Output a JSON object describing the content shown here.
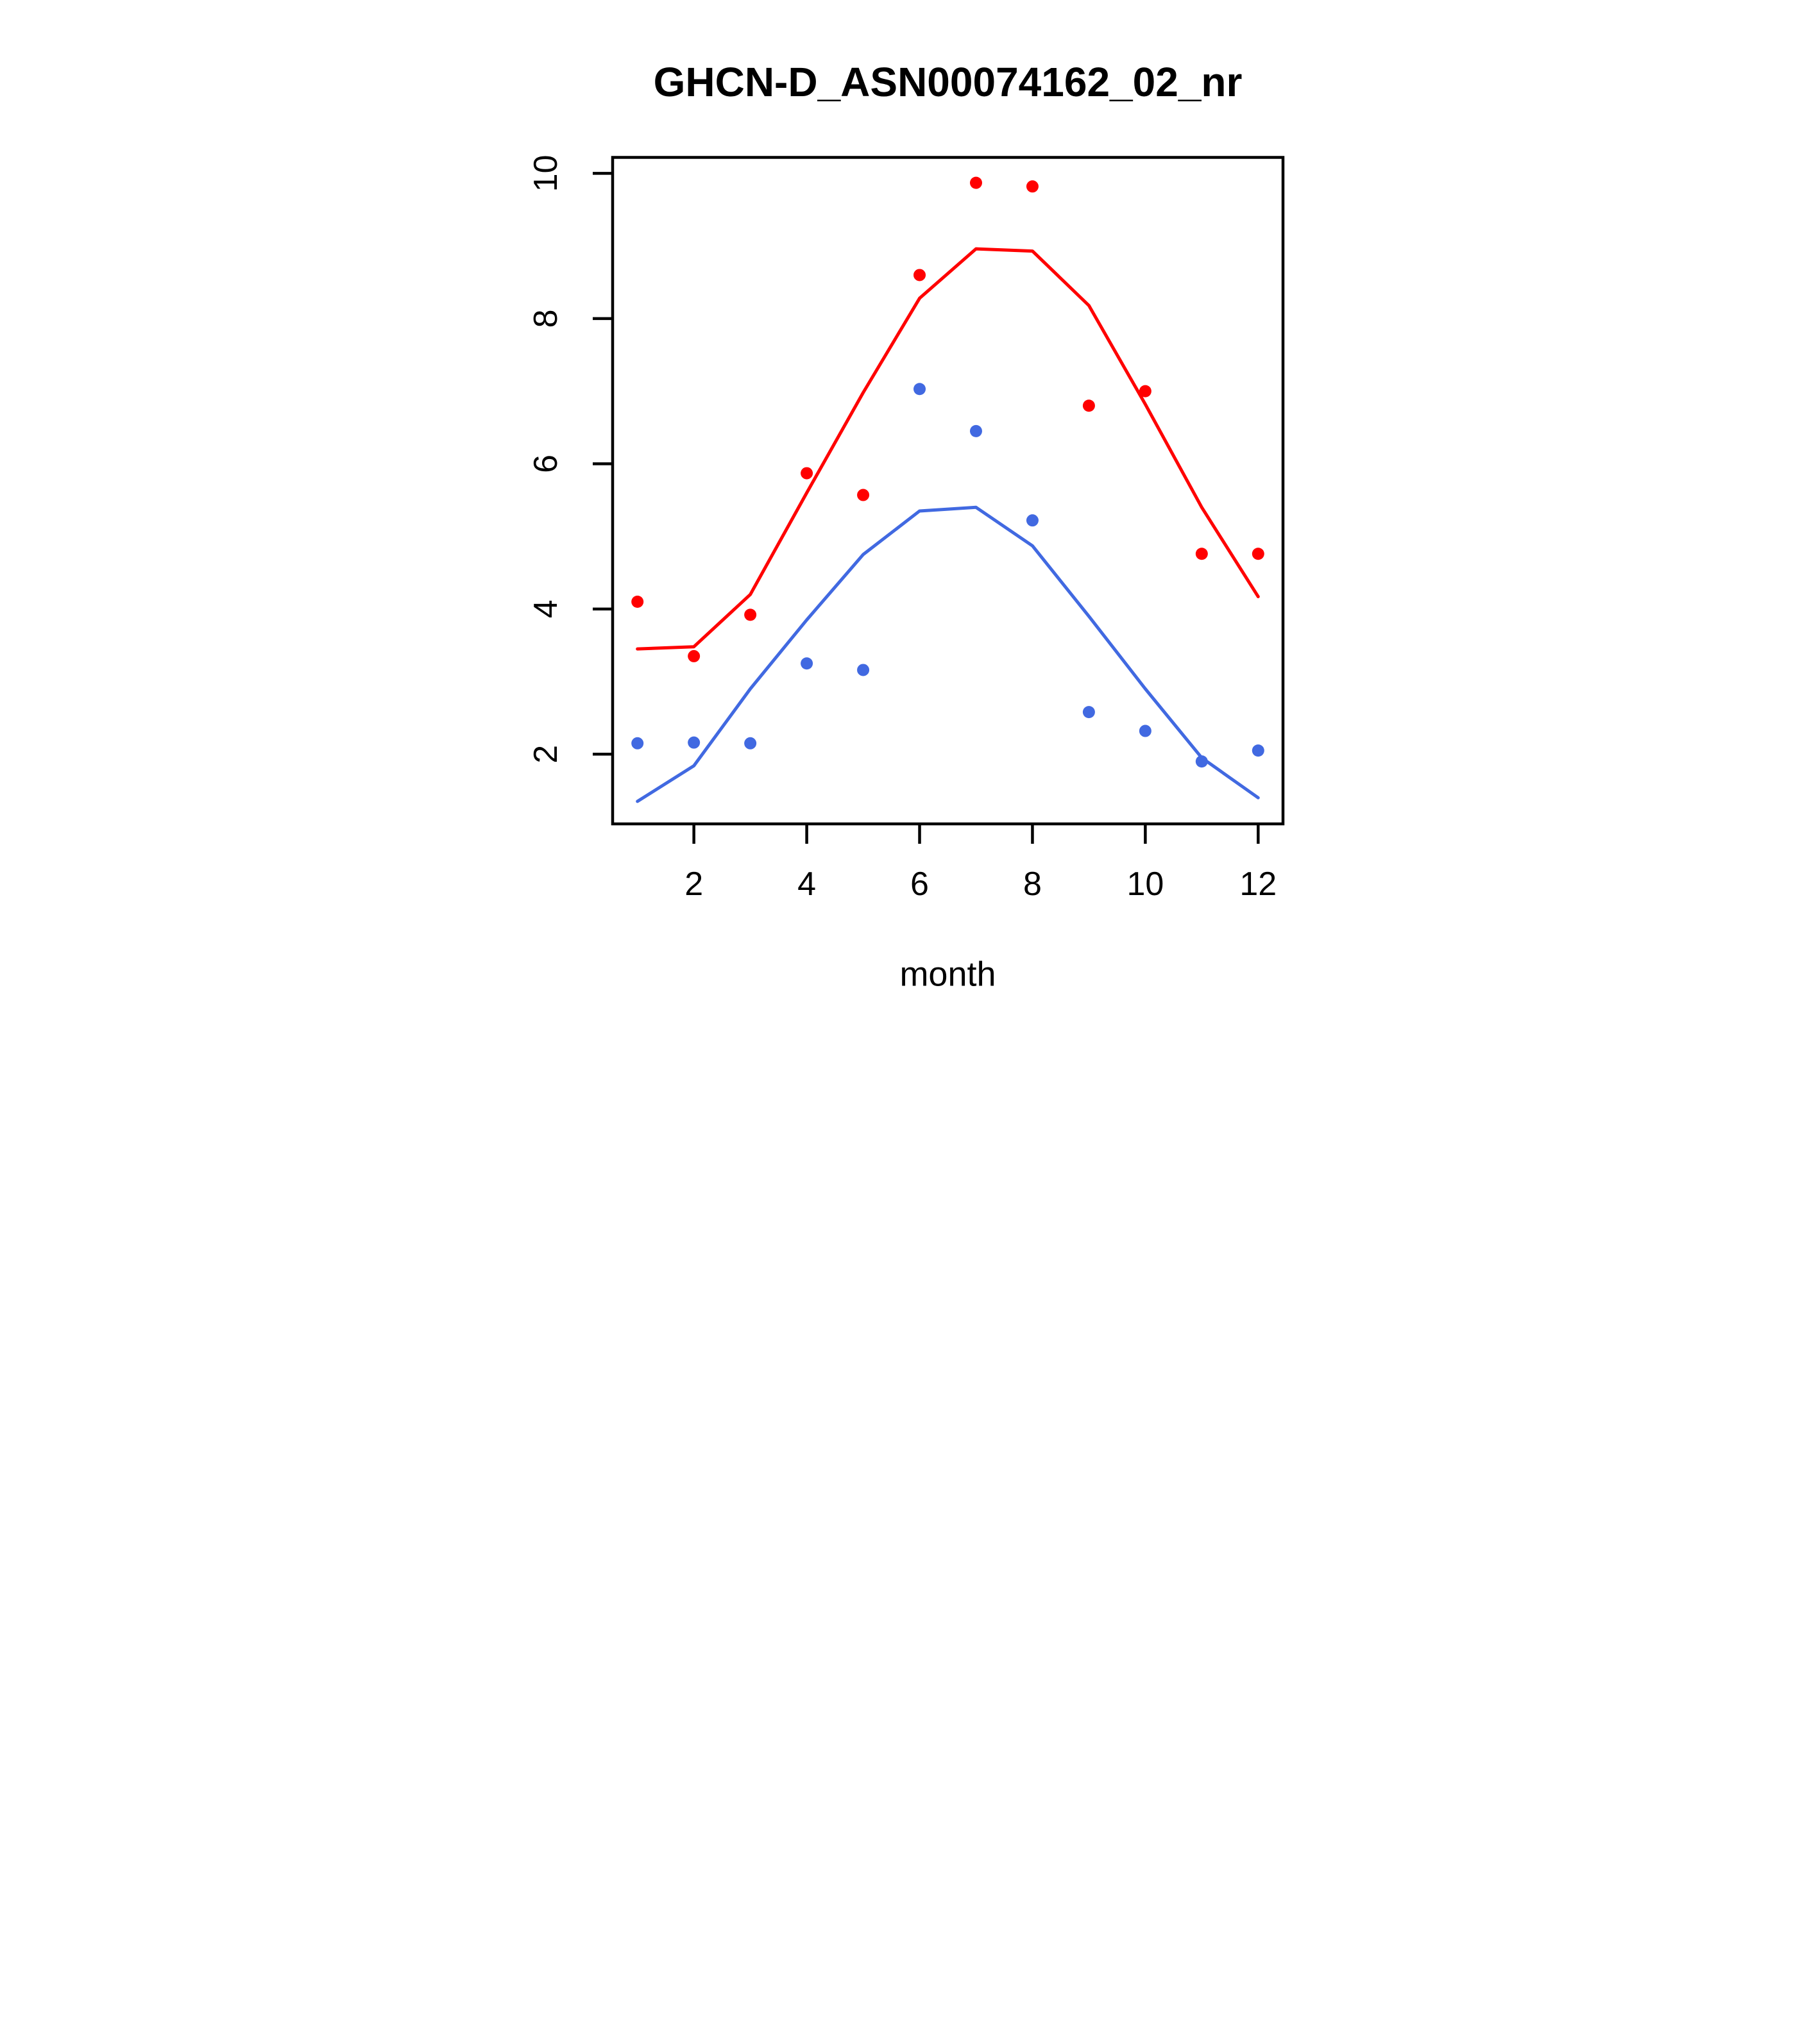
{
  "page": {
    "background": "#ffffff",
    "foreground": "#000000"
  },
  "chart_data": {
    "type": "scatter",
    "title": "GHCN-D_ASN00074162_02_nr",
    "xlabel": "month",
    "ylabel": "",
    "x": [
      1,
      2,
      3,
      4,
      5,
      6,
      7,
      8,
      9,
      10,
      11,
      12
    ],
    "series": [
      {
        "name": "red-points",
        "kind": "points",
        "color": "#FF0000",
        "values": [
          4.1,
          3.35,
          3.92,
          5.87,
          5.57,
          8.6,
          9.87,
          9.82,
          6.8,
          7.0,
          4.76,
          4.76
        ]
      },
      {
        "name": "red-line",
        "kind": "line",
        "color": "#FF0000",
        "values": [
          3.45,
          3.48,
          4.2,
          5.6,
          6.98,
          8.28,
          8.96,
          8.93,
          8.18,
          6.82,
          5.4,
          4.17
        ]
      },
      {
        "name": "blue-points",
        "kind": "points",
        "color": "#4169E1",
        "values": [
          2.15,
          2.16,
          2.15,
          3.25,
          3.16,
          7.03,
          6.45,
          5.22,
          2.58,
          2.32,
          1.9,
          2.05
        ]
      },
      {
        "name": "blue-line",
        "kind": "line",
        "color": "#4169E1",
        "values": [
          1.35,
          1.84,
          2.9,
          3.85,
          4.75,
          5.35,
          5.4,
          4.87,
          3.9,
          2.9,
          1.95,
          1.4
        ]
      }
    ],
    "xticks": [
      2,
      4,
      6,
      8,
      10,
      12
    ],
    "yticks": [
      2,
      4,
      6,
      8,
      10
    ],
    "xlim": [
      0.56,
      12.44
    ],
    "ylim": [
      1.04,
      10.22
    ],
    "grid": false,
    "legend": null
  }
}
